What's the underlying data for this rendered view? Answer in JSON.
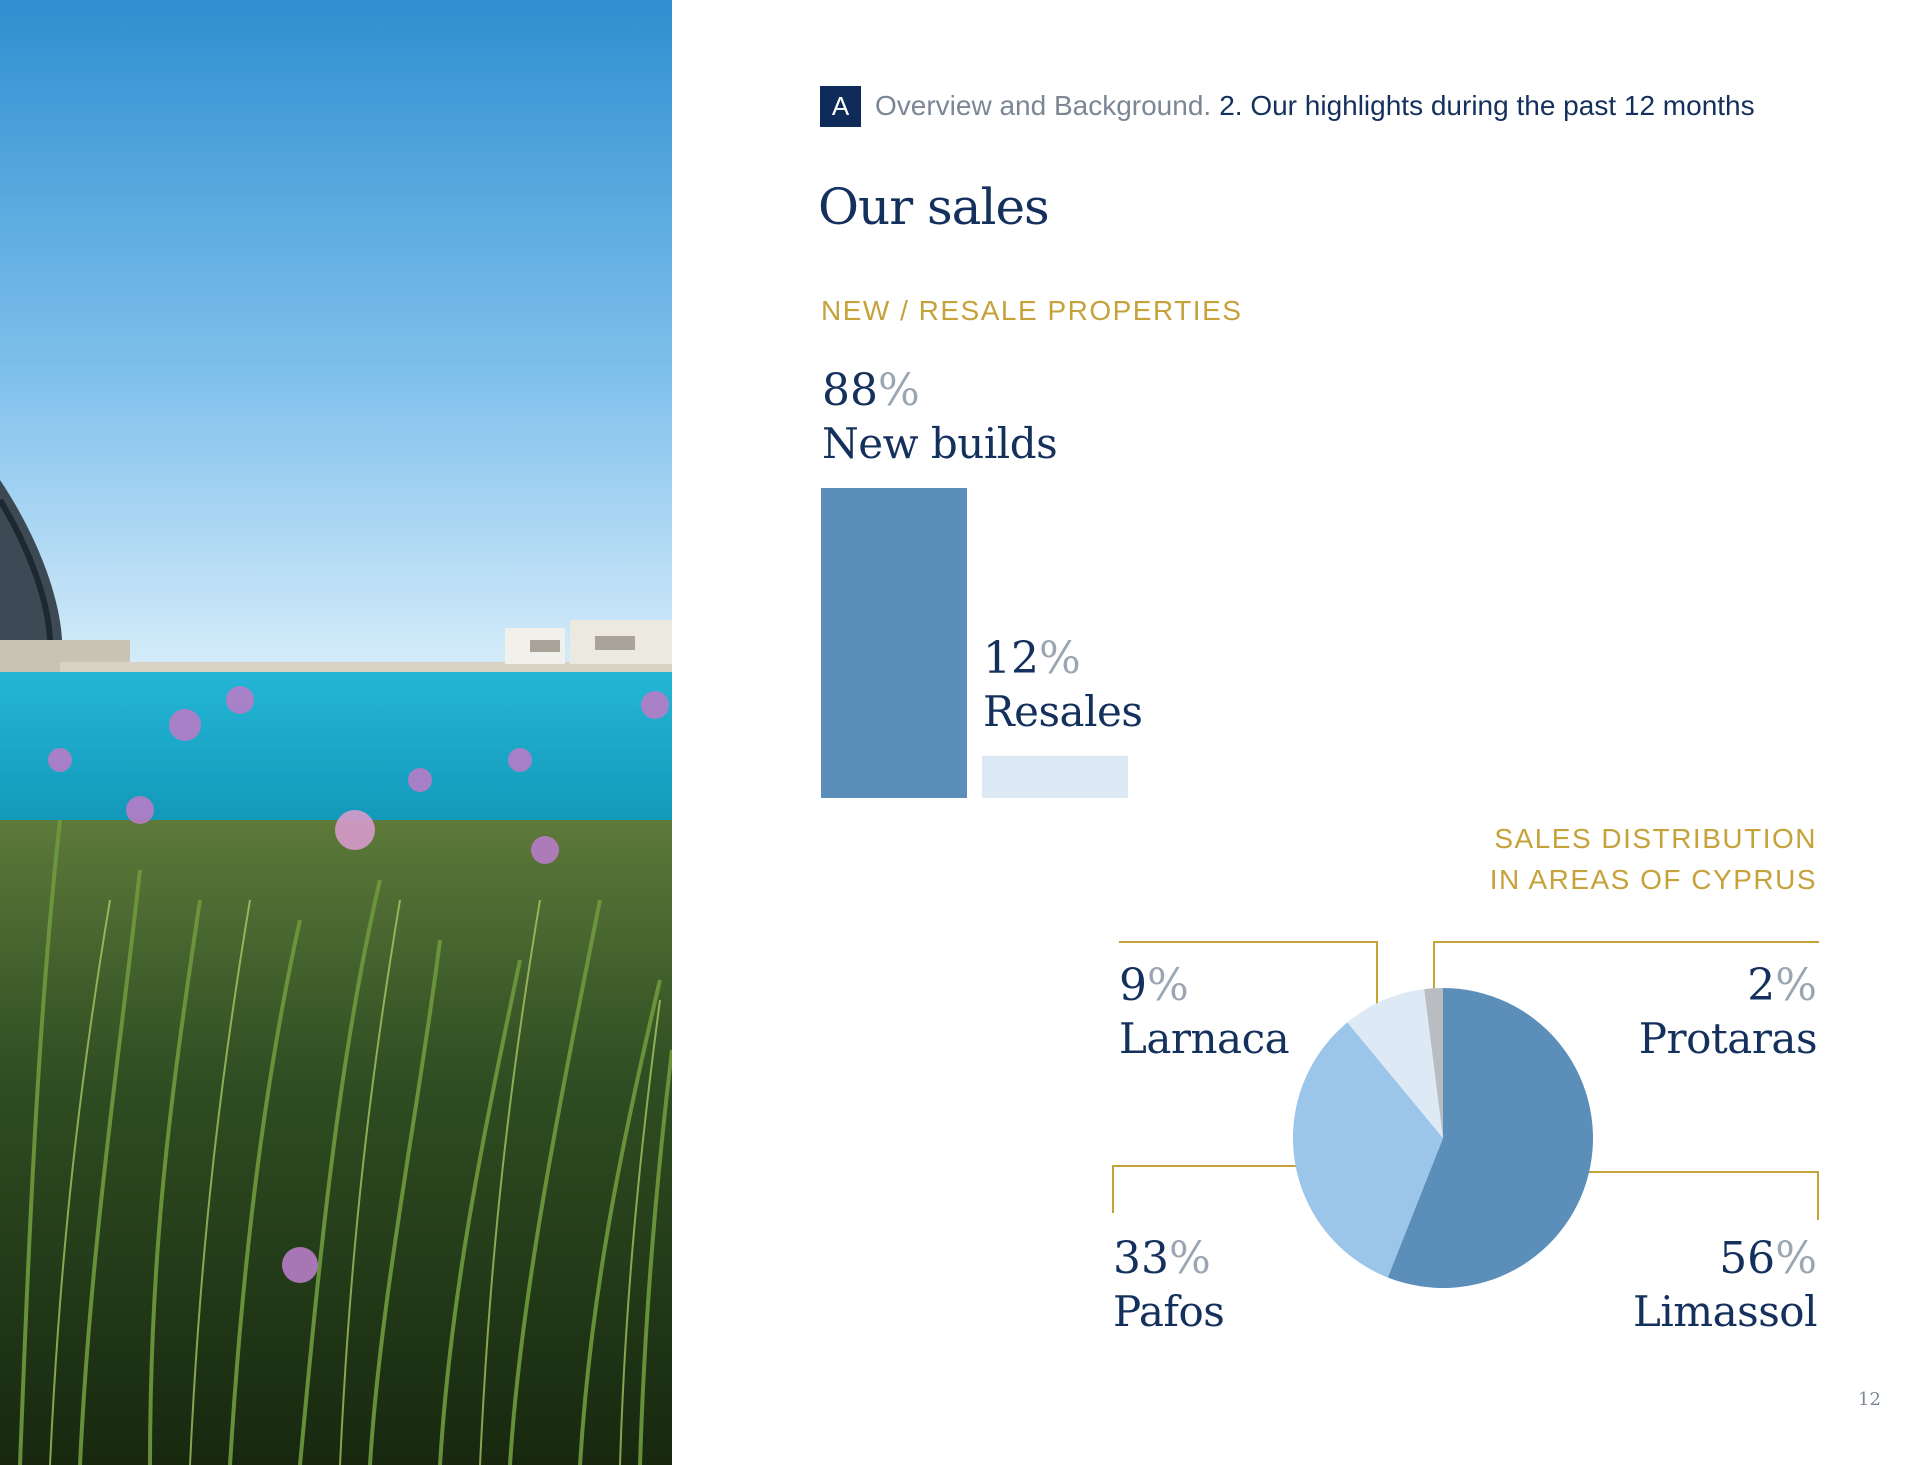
{
  "header": {
    "section_letter": "A",
    "section_title": "Overview and Background.",
    "subsection_title": "2. Our highlights during the past 12 months"
  },
  "page": {
    "title": "Our sales",
    "page_number": "12"
  },
  "colors": {
    "navy": "#14305c",
    "gold": "#c6a23b",
    "steel_blue": "#5b8fb9",
    "light_blue": "#9cc5ea",
    "pale_blue": "#dde9f4",
    "grey": "#b9bcc0"
  },
  "chart_data": [
    {
      "type": "bar",
      "title": "NEW / RESALE PROPERTIES",
      "categories": [
        "New builds",
        "Resales"
      ],
      "values": [
        88,
        12
      ],
      "value_labels": [
        "88",
        "12"
      ],
      "unit": "%",
      "ylim": [
        0,
        88
      ],
      "colors": [
        "#5b8fb9",
        "#dde9f4"
      ],
      "grid": false
    },
    {
      "type": "pie",
      "title_lines": [
        "SALES DISTRIBUTION",
        "IN AREAS OF CYPRUS"
      ],
      "categories": [
        "Limassol",
        "Pafos",
        "Larnaca",
        "Protaras"
      ],
      "values": [
        56,
        33,
        9,
        2
      ],
      "value_labels": [
        "56",
        "33",
        "9",
        "2"
      ],
      "unit": "%",
      "colors": [
        "#5b8fb9",
        "#9cc5ea",
        "#dde9f4",
        "#b9bcc0"
      ]
    }
  ]
}
